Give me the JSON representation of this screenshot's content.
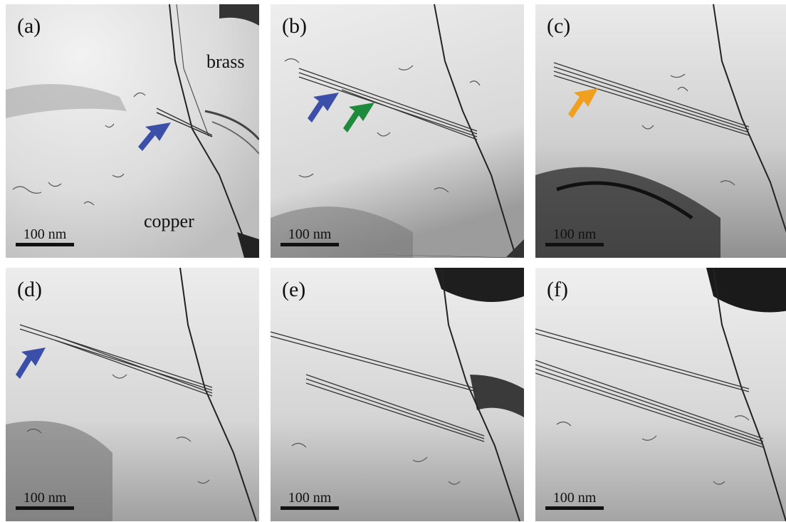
{
  "panels": [
    {
      "label": "(a)",
      "scale": "100 nm"
    },
    {
      "label": "(b)",
      "scale": "100 nm"
    },
    {
      "label": "(c)",
      "scale": "100 nm"
    },
    {
      "label": "(d)",
      "scale": "100 nm"
    },
    {
      "label": "(e)",
      "scale": "100 nm"
    },
    {
      "label": "(f)",
      "scale": "100 nm"
    }
  ],
  "annotations": {
    "brass": "brass",
    "copper": "copper"
  },
  "arrow_colors": {
    "blue": "#3b4fa8",
    "green": "#1e8a3c",
    "orange": "#f0a020"
  }
}
